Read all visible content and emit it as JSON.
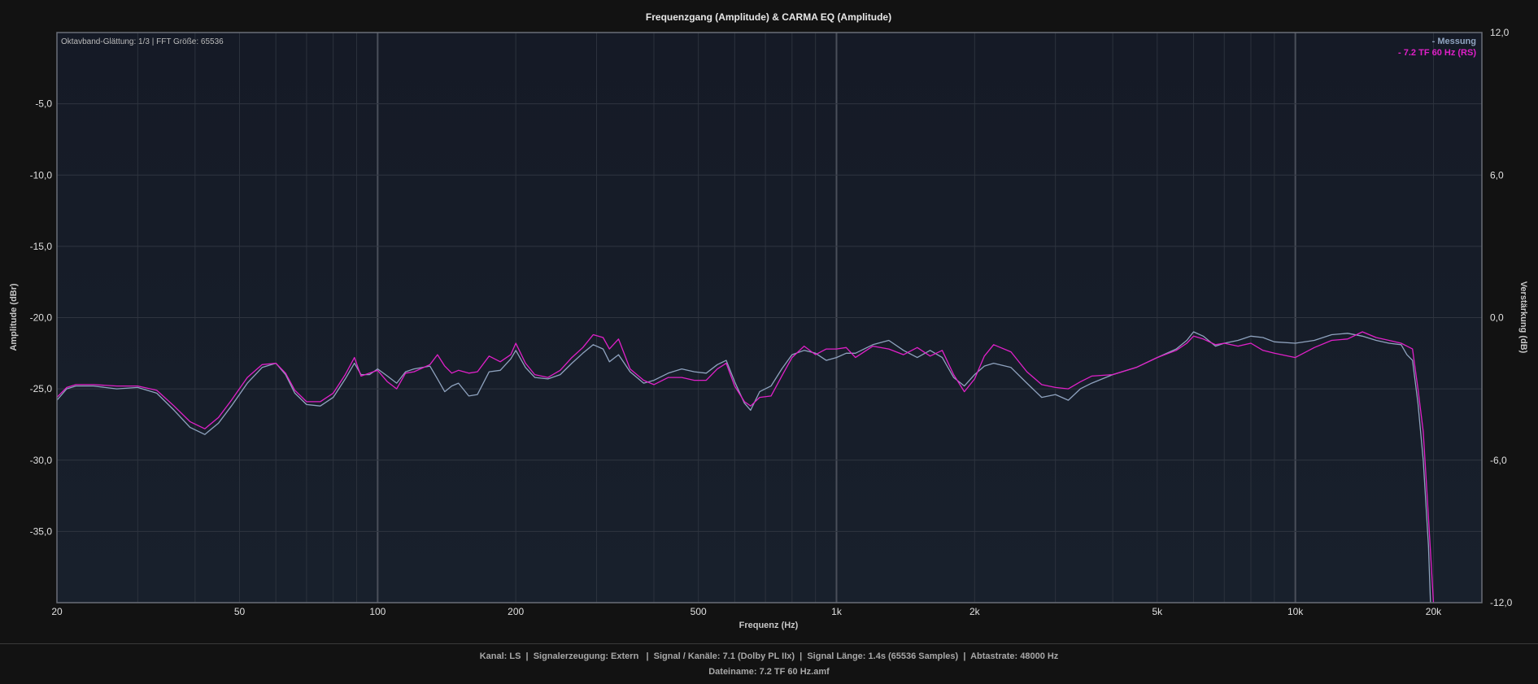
{
  "chart_data": {
    "type": "line",
    "title": "Frequenzgang (Amplitude) & CARMA EQ (Amplitude)",
    "xlabel": "Frequenz (Hz)",
    "ylabel": "Amplitude (dBr)",
    "y2label": "Verstärkung (dB)",
    "xscale": "log",
    "xlim": [
      20,
      25500
    ],
    "ylim": [
      -40,
      0
    ],
    "y2lim": [
      -12,
      12
    ],
    "grid": true,
    "info_text": "Oktavband-Glättung: 1/3 | FFT Größe: 65536",
    "legend_position": "top-right",
    "x_ticks": [
      {
        "value": 20,
        "label": "20"
      },
      {
        "value": 50,
        "label": "50"
      },
      {
        "value": 100,
        "label": "100"
      },
      {
        "value": 200,
        "label": "200"
      },
      {
        "value": 500,
        "label": "500"
      },
      {
        "value": 1000,
        "label": "1k"
      },
      {
        "value": 2000,
        "label": "2k"
      },
      {
        "value": 5000,
        "label": "5k"
      },
      {
        "value": 10000,
        "label": "10k"
      },
      {
        "value": 20000,
        "label": "20k"
      }
    ],
    "y_ticks": [
      {
        "value": -5,
        "label": "-5,0"
      },
      {
        "value": -10,
        "label": "-10,0"
      },
      {
        "value": -15,
        "label": "-15,0"
      },
      {
        "value": -20,
        "label": "-20,0"
      },
      {
        "value": -25,
        "label": "-25,0"
      },
      {
        "value": -30,
        "label": "-30,0"
      },
      {
        "value": -35,
        "label": "-35,0"
      }
    ],
    "y2_ticks": [
      {
        "value": 12,
        "label": "12,0"
      },
      {
        "value": 6,
        "label": "6,0"
      },
      {
        "value": 0,
        "label": "0,0"
      },
      {
        "value": -6,
        "label": "-6,0"
      },
      {
        "value": -12,
        "label": "-12,0"
      }
    ],
    "series": [
      {
        "name": "- Messung",
        "color": "#8fa3bf",
        "points": [
          [
            20,
            -25.8
          ],
          [
            21,
            -25.0
          ],
          [
            22,
            -24.8
          ],
          [
            24,
            -24.8
          ],
          [
            27,
            -25.0
          ],
          [
            30,
            -24.9
          ],
          [
            33,
            -25.3
          ],
          [
            36,
            -26.5
          ],
          [
            39,
            -27.7
          ],
          [
            42,
            -28.2
          ],
          [
            45,
            -27.4
          ],
          [
            48,
            -26.2
          ],
          [
            52,
            -24.6
          ],
          [
            56,
            -23.5
          ],
          [
            60,
            -23.2
          ],
          [
            63,
            -24.0
          ],
          [
            66,
            -25.3
          ],
          [
            70,
            -26.1
          ],
          [
            75,
            -26.2
          ],
          [
            80,
            -25.6
          ],
          [
            85,
            -24.3
          ],
          [
            89,
            -23.2
          ],
          [
            92,
            -24.0
          ],
          [
            96,
            -24.0
          ],
          [
            100,
            -23.6
          ],
          [
            105,
            -24.1
          ],
          [
            110,
            -24.6
          ],
          [
            115,
            -23.8
          ],
          [
            120,
            -23.6
          ],
          [
            130,
            -23.4
          ],
          [
            135,
            -24.3
          ],
          [
            140,
            -25.2
          ],
          [
            145,
            -24.8
          ],
          [
            150,
            -24.6
          ],
          [
            158,
            -25.5
          ],
          [
            165,
            -25.4
          ],
          [
            175,
            -23.8
          ],
          [
            185,
            -23.7
          ],
          [
            195,
            -22.9
          ],
          [
            200,
            -22.3
          ],
          [
            210,
            -23.5
          ],
          [
            220,
            -24.2
          ],
          [
            235,
            -24.3
          ],
          [
            250,
            -24.0
          ],
          [
            265,
            -23.2
          ],
          [
            280,
            -22.5
          ],
          [
            295,
            -21.9
          ],
          [
            310,
            -22.2
          ],
          [
            320,
            -23.1
          ],
          [
            335,
            -22.6
          ],
          [
            355,
            -23.8
          ],
          [
            380,
            -24.6
          ],
          [
            400,
            -24.4
          ],
          [
            430,
            -23.9
          ],
          [
            460,
            -23.6
          ],
          [
            490,
            -23.8
          ],
          [
            520,
            -23.9
          ],
          [
            550,
            -23.3
          ],
          [
            575,
            -23.0
          ],
          [
            600,
            -24.5
          ],
          [
            630,
            -26.0
          ],
          [
            650,
            -26.5
          ],
          [
            680,
            -25.2
          ],
          [
            720,
            -24.8
          ],
          [
            760,
            -23.6
          ],
          [
            800,
            -22.6
          ],
          [
            850,
            -22.3
          ],
          [
            900,
            -22.5
          ],
          [
            950,
            -23.0
          ],
          [
            1000,
            -22.8
          ],
          [
            1050,
            -22.5
          ],
          [
            1100,
            -22.5
          ],
          [
            1200,
            -21.9
          ],
          [
            1300,
            -21.6
          ],
          [
            1400,
            -22.3
          ],
          [
            1500,
            -22.8
          ],
          [
            1600,
            -22.3
          ],
          [
            1700,
            -22.8
          ],
          [
            1800,
            -24.2
          ],
          [
            1900,
            -24.8
          ],
          [
            2000,
            -24.0
          ],
          [
            2100,
            -23.4
          ],
          [
            2200,
            -23.2
          ],
          [
            2400,
            -23.5
          ],
          [
            2600,
            -24.6
          ],
          [
            2800,
            -25.6
          ],
          [
            3000,
            -25.4
          ],
          [
            3200,
            -25.8
          ],
          [
            3400,
            -25.0
          ],
          [
            3600,
            -24.6
          ],
          [
            4000,
            -24.0
          ],
          [
            4500,
            -23.5
          ],
          [
            5000,
            -22.8
          ],
          [
            5500,
            -22.2
          ],
          [
            5800,
            -21.6
          ],
          [
            6000,
            -21.0
          ],
          [
            6300,
            -21.3
          ],
          [
            6700,
            -22.0
          ],
          [
            7000,
            -21.8
          ],
          [
            7500,
            -21.6
          ],
          [
            8000,
            -21.3
          ],
          [
            8500,
            -21.4
          ],
          [
            9000,
            -21.7
          ],
          [
            10000,
            -21.8
          ],
          [
            11000,
            -21.6
          ],
          [
            12000,
            -21.2
          ],
          [
            13000,
            -21.1
          ],
          [
            14000,
            -21.3
          ],
          [
            15000,
            -21.6
          ],
          [
            16000,
            -21.8
          ],
          [
            17000,
            -21.9
          ],
          [
            17500,
            -22.6
          ],
          [
            18000,
            -23.0
          ],
          [
            18500,
            -26.0
          ],
          [
            19000,
            -30.0
          ],
          [
            19500,
            -36.0
          ],
          [
            19700,
            -40.0
          ]
        ]
      },
      {
        "name": "- 7.2 TF 60 Hz (RS)",
        "color": "#e020c8",
        "points": [
          [
            20,
            -25.6
          ],
          [
            21,
            -24.9
          ],
          [
            22,
            -24.7
          ],
          [
            24,
            -24.7
          ],
          [
            27,
            -24.8
          ],
          [
            30,
            -24.8
          ],
          [
            33,
            -25.1
          ],
          [
            36,
            -26.2
          ],
          [
            39,
            -27.3
          ],
          [
            42,
            -27.8
          ],
          [
            45,
            -27.0
          ],
          [
            48,
            -25.8
          ],
          [
            52,
            -24.2
          ],
          [
            56,
            -23.3
          ],
          [
            60,
            -23.2
          ],
          [
            63,
            -23.9
          ],
          [
            66,
            -25.1
          ],
          [
            70,
            -25.9
          ],
          [
            75,
            -25.9
          ],
          [
            80,
            -25.3
          ],
          [
            85,
            -24.0
          ],
          [
            89,
            -22.8
          ],
          [
            92,
            -24.1
          ],
          [
            96,
            -23.9
          ],
          [
            100,
            -23.7
          ],
          [
            105,
            -24.5
          ],
          [
            110,
            -25.0
          ],
          [
            115,
            -23.9
          ],
          [
            120,
            -23.8
          ],
          [
            130,
            -23.3
          ],
          [
            135,
            -22.6
          ],
          [
            140,
            -23.4
          ],
          [
            145,
            -23.9
          ],
          [
            150,
            -23.7
          ],
          [
            158,
            -23.9
          ],
          [
            165,
            -23.8
          ],
          [
            175,
            -22.7
          ],
          [
            185,
            -23.1
          ],
          [
            195,
            -22.6
          ],
          [
            200,
            -21.8
          ],
          [
            210,
            -23.2
          ],
          [
            220,
            -24.0
          ],
          [
            235,
            -24.2
          ],
          [
            250,
            -23.7
          ],
          [
            265,
            -22.8
          ],
          [
            280,
            -22.1
          ],
          [
            295,
            -21.2
          ],
          [
            310,
            -21.4
          ],
          [
            320,
            -22.2
          ],
          [
            335,
            -21.5
          ],
          [
            355,
            -23.6
          ],
          [
            380,
            -24.4
          ],
          [
            400,
            -24.7
          ],
          [
            430,
            -24.2
          ],
          [
            460,
            -24.2
          ],
          [
            490,
            -24.4
          ],
          [
            520,
            -24.4
          ],
          [
            550,
            -23.6
          ],
          [
            575,
            -23.2
          ],
          [
            600,
            -24.8
          ],
          [
            630,
            -25.9
          ],
          [
            650,
            -26.2
          ],
          [
            680,
            -25.6
          ],
          [
            720,
            -25.5
          ],
          [
            760,
            -24.1
          ],
          [
            800,
            -22.8
          ],
          [
            850,
            -22.0
          ],
          [
            900,
            -22.6
          ],
          [
            950,
            -22.2
          ],
          [
            1000,
            -22.2
          ],
          [
            1050,
            -22.1
          ],
          [
            1100,
            -22.8
          ],
          [
            1200,
            -22.0
          ],
          [
            1300,
            -22.2
          ],
          [
            1400,
            -22.6
          ],
          [
            1500,
            -22.1
          ],
          [
            1600,
            -22.7
          ],
          [
            1700,
            -22.3
          ],
          [
            1800,
            -24.0
          ],
          [
            1900,
            -25.2
          ],
          [
            2000,
            -24.3
          ],
          [
            2100,
            -22.7
          ],
          [
            2200,
            -21.9
          ],
          [
            2400,
            -22.4
          ],
          [
            2600,
            -23.8
          ],
          [
            2800,
            -24.7
          ],
          [
            3000,
            -24.9
          ],
          [
            3200,
            -25.0
          ],
          [
            3400,
            -24.5
          ],
          [
            3600,
            -24.1
          ],
          [
            4000,
            -24.0
          ],
          [
            4500,
            -23.5
          ],
          [
            5000,
            -22.8
          ],
          [
            5500,
            -22.3
          ],
          [
            5800,
            -21.8
          ],
          [
            6000,
            -21.3
          ],
          [
            6300,
            -21.5
          ],
          [
            6700,
            -21.9
          ],
          [
            7000,
            -21.8
          ],
          [
            7500,
            -22.0
          ],
          [
            8000,
            -21.8
          ],
          [
            8500,
            -22.3
          ],
          [
            9000,
            -22.5
          ],
          [
            10000,
            -22.8
          ],
          [
            11000,
            -22.1
          ],
          [
            12000,
            -21.6
          ],
          [
            13000,
            -21.5
          ],
          [
            14000,
            -21.0
          ],
          [
            15000,
            -21.4
          ],
          [
            16000,
            -21.6
          ],
          [
            17000,
            -21.8
          ],
          [
            17500,
            -22.0
          ],
          [
            18000,
            -22.2
          ],
          [
            18500,
            -25.0
          ],
          [
            19000,
            -28.0
          ],
          [
            19500,
            -34.0
          ],
          [
            20000,
            -40.0
          ]
        ]
      }
    ]
  },
  "footer": {
    "line1": "Kanal: LS  |  Signalerzeugung: Extern   |  Signal / Kanäle: 7.1 (Dolby PL IIx)  |  Signal Länge: 1.4s (65536 Samples)  |  Abtastrate: 48000 Hz",
    "line2": "Dateiname: 7.2 TF 60 Hz.amf"
  }
}
